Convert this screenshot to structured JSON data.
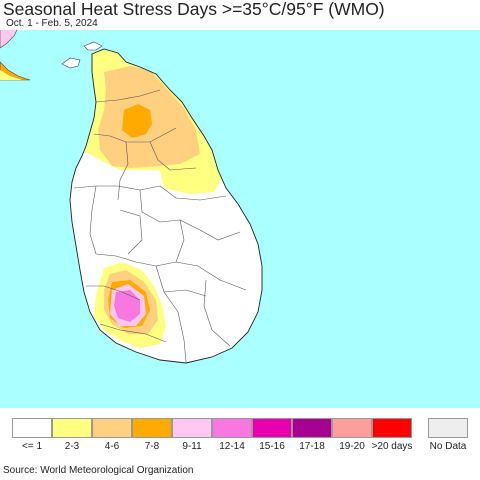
{
  "header": {
    "title": "Seasonal Heat Stress Days >=35°C/95°F (WMO)",
    "subtitle": "Oct. 1 - Feb. 5, 2024"
  },
  "legend": {
    "items": [
      {
        "label": "<= 1",
        "color": "#ffffff"
      },
      {
        "label": "2-3",
        "color": "#ffff80"
      },
      {
        "label": "4-6",
        "color": "#ffd080"
      },
      {
        "label": "7-8",
        "color": "#ffaa00"
      },
      {
        "label": "9-11",
        "color": "#ffc8f0"
      },
      {
        "label": "12-14",
        "color": "#f878e0"
      },
      {
        "label": "15-16",
        "color": "#e800b0"
      },
      {
        "label": "17-18",
        "color": "#a80090"
      },
      {
        "label": "19-20",
        "color": "#ff9c9c"
      },
      {
        "label": ">20 days",
        "color": "#ff0000"
      },
      {
        "label": "No Data",
        "color": "#eeeeee"
      }
    ]
  },
  "footer": {
    "source": "Source: World Meteorological Organization"
  },
  "map": {
    "ocean_color": "#aaffff",
    "land_color": "#ffffff"
  }
}
